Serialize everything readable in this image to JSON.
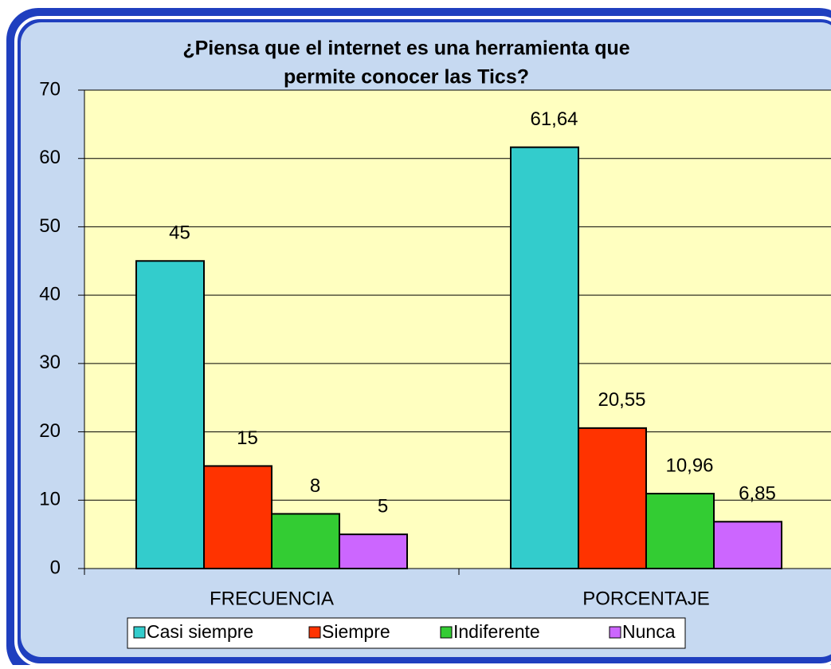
{
  "chart_data": {
    "type": "bar",
    "title": [
      "¿Piensa que el internet es una herramienta que",
      "permite conocer las Tics?"
    ],
    "categories": [
      "FRECUENCIA",
      "PORCENTAJE"
    ],
    "series": [
      {
        "name": "Casi siempre",
        "color": "#33cccc",
        "values": [
          45,
          61.64
        ],
        "value_labels": [
          "45",
          "61,64"
        ]
      },
      {
        "name": "Siempre",
        "color": "#ff3300",
        "values": [
          15,
          20.55
        ],
        "value_labels": [
          "15",
          "20,55"
        ]
      },
      {
        "name": "Indiferente",
        "color": "#33cc33",
        "values": [
          8,
          10.96
        ],
        "value_labels": [
          "8",
          "10,96"
        ]
      },
      {
        "name": "Nunca",
        "color": "#cc66ff",
        "values": [
          5,
          6.85
        ],
        "value_labels": [
          "5",
          "6,85"
        ]
      }
    ],
    "ylim": [
      0,
      70
    ],
    "yticks": [
      0,
      10,
      20,
      30,
      40,
      50,
      60,
      70
    ],
    "grid": true,
    "legend": "bottom"
  }
}
